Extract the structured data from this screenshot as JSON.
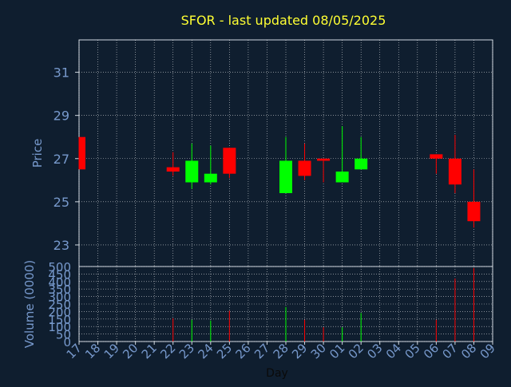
{
  "chart_data": {
    "type": "candlestick",
    "title": "SFOR - last updated 08/05/2025",
    "colors": {
      "background": "#0f1e2f",
      "title": "#ffff33",
      "axis_text": "#7799cc",
      "grid": "#ffffff",
      "up": "#00ff00",
      "down": "#ff0000"
    },
    "x_axis": {
      "label": "Day",
      "tick_labels": [
        "17",
        "18",
        "19",
        "20",
        "21",
        "22",
        "23",
        "24",
        "25",
        "26",
        "27",
        "28",
        "29",
        "30",
        "01",
        "02",
        "03",
        "04",
        "05",
        "06",
        "07",
        "08",
        "09"
      ]
    },
    "price_panel": {
      "ylabel": "Price",
      "ylim": [
        22.0,
        32.5
      ],
      "yticks": [
        23,
        25,
        27,
        29,
        31
      ],
      "candles": [
        {
          "day": "17",
          "open": 28.0,
          "close": 26.5,
          "high": 28.0,
          "low": 26.5
        },
        {
          "day": "22",
          "open": 26.6,
          "close": 26.4,
          "high": 27.3,
          "low": 26.2
        },
        {
          "day": "23",
          "open": 25.9,
          "close": 26.9,
          "high": 27.7,
          "low": 25.6
        },
        {
          "day": "24",
          "open": 25.9,
          "close": 26.3,
          "high": 27.6,
          "low": 25.8
        },
        {
          "day": "25",
          "open": 27.5,
          "close": 26.3,
          "high": 27.5,
          "low": 26.1
        },
        {
          "day": "28",
          "open": 25.4,
          "close": 26.9,
          "high": 28.0,
          "low": 25.4
        },
        {
          "day": "29",
          "open": 26.9,
          "close": 26.2,
          "high": 27.7,
          "low": 26.0
        },
        {
          "day": "30",
          "open": 27.0,
          "close": 26.9,
          "high": 27.0,
          "low": 25.9
        },
        {
          "day": "01",
          "open": 25.9,
          "close": 26.4,
          "high": 28.5,
          "low": 25.9
        },
        {
          "day": "02",
          "open": 26.5,
          "close": 27.0,
          "high": 28.0,
          "low": 26.5
        },
        {
          "day": "06",
          "open": 27.2,
          "close": 27.0,
          "high": 27.2,
          "low": 26.3
        },
        {
          "day": "07",
          "open": 27.0,
          "close": 25.8,
          "high": 28.1,
          "low": 25.4
        },
        {
          "day": "08",
          "open": 25.0,
          "close": 24.1,
          "high": 26.5,
          "low": 23.8
        }
      ]
    },
    "volume_panel": {
      "ylabel": "Volume (0000)",
      "ylim": [
        0,
        500
      ],
      "yticks": [
        0,
        50,
        100,
        150,
        200,
        250,
        300,
        350,
        400,
        450,
        500
      ],
      "bars": [
        {
          "day": "22",
          "value": 155,
          "direction": "down"
        },
        {
          "day": "23",
          "value": 145,
          "direction": "up"
        },
        {
          "day": "24",
          "value": 140,
          "direction": "up"
        },
        {
          "day": "25",
          "value": 205,
          "direction": "down"
        },
        {
          "day": "28",
          "value": 230,
          "direction": "up"
        },
        {
          "day": "29",
          "value": 145,
          "direction": "down"
        },
        {
          "day": "30",
          "value": 95,
          "direction": "down"
        },
        {
          "day": "01",
          "value": 95,
          "direction": "up"
        },
        {
          "day": "02",
          "value": 190,
          "direction": "up"
        },
        {
          "day": "06",
          "value": 145,
          "direction": "down"
        },
        {
          "day": "07",
          "value": 420,
          "direction": "down"
        },
        {
          "day": "08",
          "value": 490,
          "direction": "down"
        }
      ]
    }
  }
}
